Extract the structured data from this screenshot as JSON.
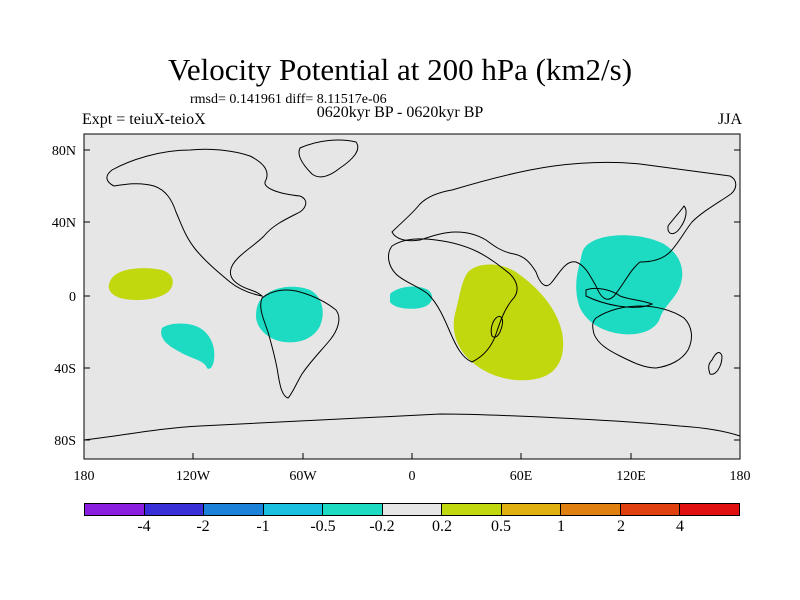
{
  "title": "Velocity Potential at 200 hPa (km2/s)",
  "stats": "rmsd= 0.141961 diff= 8.11517e-06",
  "experiment": "Expt = teiuX-teioX",
  "period": "0620kyr BP - 0620kyr BP",
  "season": "JJA",
  "axes": {
    "y_ticks": [
      "80N",
      "40N",
      "0",
      "40S",
      "80S"
    ],
    "x_ticks": [
      "180",
      "120W",
      "60W",
      "0",
      "60E",
      "120E",
      "180"
    ]
  },
  "colors": {
    "ocean": "#e6e6e6",
    "neg_fill": "#1ddbc2",
    "pos_fill": "#c2d80e",
    "coast": "#000000"
  },
  "colorbar": {
    "colors": [
      "#8a1fe0",
      "#3a30d8",
      "#1a82d8",
      "#1ac0e0",
      "#1ddbc2",
      "#e6e6e6",
      "#c2d80e",
      "#e0b010",
      "#e08010",
      "#e04010",
      "#e01010"
    ],
    "labels": [
      "-4",
      "-2",
      "-1",
      "-0.5",
      "-0.2",
      "0.2",
      "0.5",
      "1",
      "2",
      "4"
    ]
  }
}
